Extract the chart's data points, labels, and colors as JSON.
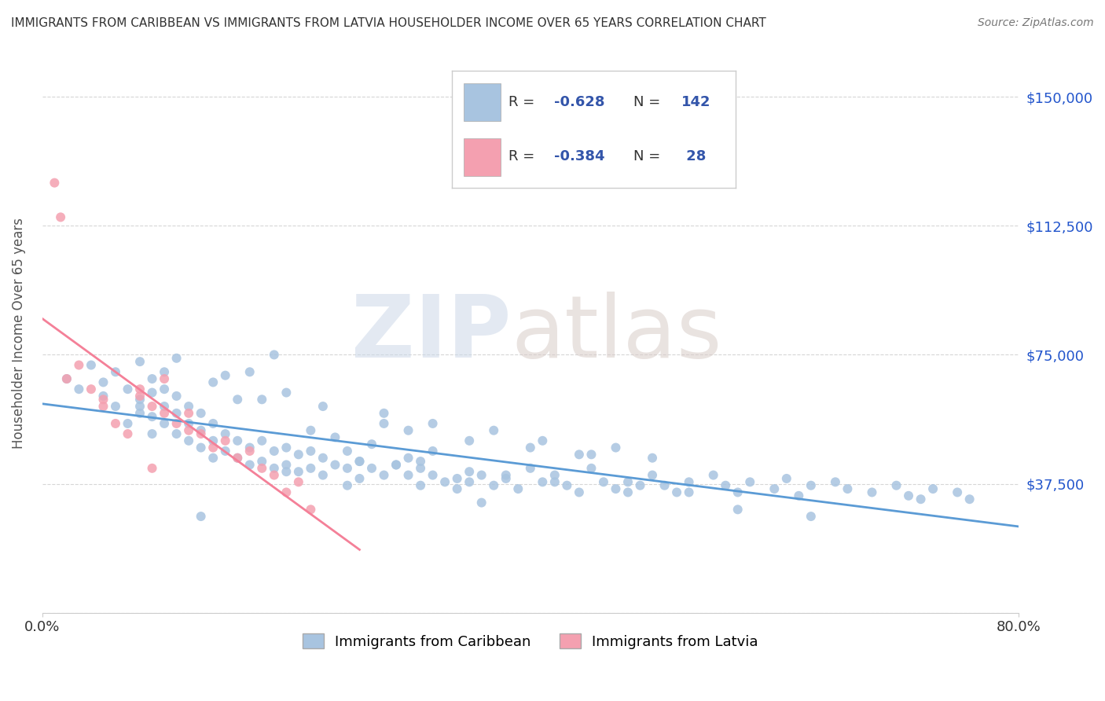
{
  "title": "IMMIGRANTS FROM CARIBBEAN VS IMMIGRANTS FROM LATVIA HOUSEHOLDER INCOME OVER 65 YEARS CORRELATION CHART",
  "source": "Source: ZipAtlas.com",
  "ylabel": "Householder Income Over 65 years",
  "xlim": [
    0.0,
    0.8
  ],
  "ylim": [
    0,
    162500
  ],
  "yticks": [
    0,
    37500,
    75000,
    112500,
    150000
  ],
  "ytick_labels": [
    "",
    "$37,500",
    "$75,000",
    "$112,500",
    "$150,000"
  ],
  "xticks": [
    0.0,
    0.8
  ],
  "xtick_labels": [
    "0.0%",
    "80.0%"
  ],
  "caribbean_R": -0.628,
  "caribbean_N": 142,
  "latvia_R": -0.384,
  "latvia_N": 28,
  "caribbean_color": "#a8c4e0",
  "latvia_color": "#f4a0b0",
  "caribbean_line_color": "#5b9bd5",
  "latvia_line_color": "#f48098",
  "background_color": "#ffffff",
  "grid_color": "#cccccc",
  "title_color": "#333333",
  "legend_R_color": "#3355aa",
  "legend_N_color": "#3355aa",
  "caribbean_scatter_x": [
    0.02,
    0.03,
    0.04,
    0.05,
    0.05,
    0.06,
    0.06,
    0.07,
    0.07,
    0.08,
    0.08,
    0.08,
    0.09,
    0.09,
    0.09,
    0.1,
    0.1,
    0.1,
    0.1,
    0.11,
    0.11,
    0.11,
    0.12,
    0.12,
    0.12,
    0.13,
    0.13,
    0.13,
    0.14,
    0.14,
    0.14,
    0.15,
    0.15,
    0.16,
    0.16,
    0.17,
    0.17,
    0.18,
    0.18,
    0.19,
    0.19,
    0.2,
    0.2,
    0.21,
    0.21,
    0.22,
    0.22,
    0.23,
    0.23,
    0.24,
    0.25,
    0.25,
    0.26,
    0.26,
    0.27,
    0.28,
    0.29,
    0.3,
    0.3,
    0.31,
    0.31,
    0.32,
    0.33,
    0.34,
    0.35,
    0.35,
    0.36,
    0.37,
    0.38,
    0.39,
    0.4,
    0.41,
    0.42,
    0.43,
    0.44,
    0.45,
    0.46,
    0.47,
    0.48,
    0.49,
    0.5,
    0.51,
    0.52,
    0.53,
    0.55,
    0.56,
    0.57,
    0.58,
    0.6,
    0.61,
    0.62,
    0.63,
    0.65,
    0.66,
    0.68,
    0.7,
    0.71,
    0.72,
    0.73,
    0.75,
    0.76,
    0.22,
    0.24,
    0.17,
    0.19,
    0.14,
    0.11,
    0.08,
    0.09,
    0.16,
    0.2,
    0.26,
    0.28,
    0.3,
    0.32,
    0.35,
    0.37,
    0.4,
    0.41,
    0.45,
    0.47,
    0.5,
    0.13,
    0.36,
    0.42,
    0.48,
    0.28,
    0.23,
    0.32,
    0.18,
    0.15,
    0.27,
    0.38,
    0.44,
    0.29,
    0.34,
    0.31,
    0.2,
    0.25,
    0.53,
    0.57,
    0.63,
    0.67
  ],
  "caribbean_scatter_y": [
    68000,
    65000,
    72000,
    67000,
    63000,
    70000,
    60000,
    65000,
    55000,
    62000,
    58000,
    60000,
    64000,
    57000,
    52000,
    70000,
    65000,
    60000,
    55000,
    63000,
    58000,
    52000,
    60000,
    55000,
    50000,
    58000,
    53000,
    48000,
    55000,
    50000,
    45000,
    52000,
    47000,
    50000,
    45000,
    48000,
    43000,
    50000,
    44000,
    47000,
    42000,
    48000,
    43000,
    46000,
    41000,
    47000,
    42000,
    45000,
    40000,
    43000,
    47000,
    42000,
    44000,
    39000,
    42000,
    40000,
    43000,
    45000,
    40000,
    42000,
    37000,
    40000,
    38000,
    36000,
    41000,
    38000,
    40000,
    37000,
    39000,
    36000,
    42000,
    38000,
    40000,
    37000,
    35000,
    42000,
    38000,
    36000,
    38000,
    37000,
    40000,
    37000,
    35000,
    38000,
    40000,
    37000,
    35000,
    38000,
    36000,
    39000,
    34000,
    37000,
    38000,
    36000,
    35000,
    37000,
    34000,
    33000,
    36000,
    35000,
    33000,
    53000,
    51000,
    70000,
    75000,
    67000,
    74000,
    73000,
    68000,
    62000,
    64000,
    44000,
    58000,
    53000,
    55000,
    50000,
    53000,
    48000,
    50000,
    46000,
    48000,
    45000,
    28000,
    32000,
    38000,
    35000,
    55000,
    60000,
    47000,
    62000,
    69000,
    49000,
    40000,
    46000,
    43000,
    39000,
    44000,
    41000,
    37000,
    35000,
    30000,
    28000
  ],
  "latvia_scatter_x": [
    0.01,
    0.015,
    0.02,
    0.03,
    0.04,
    0.05,
    0.06,
    0.07,
    0.08,
    0.09,
    0.1,
    0.11,
    0.12,
    0.13,
    0.14,
    0.15,
    0.16,
    0.17,
    0.18,
    0.19,
    0.2,
    0.21,
    0.22,
    0.08,
    0.1,
    0.12,
    0.05,
    0.09
  ],
  "latvia_scatter_y": [
    125000,
    115000,
    68000,
    72000,
    65000,
    60000,
    55000,
    52000,
    65000,
    60000,
    68000,
    55000,
    58000,
    52000,
    48000,
    50000,
    45000,
    47000,
    42000,
    40000,
    35000,
    38000,
    30000,
    63000,
    58000,
    53000,
    62000,
    42000
  ]
}
